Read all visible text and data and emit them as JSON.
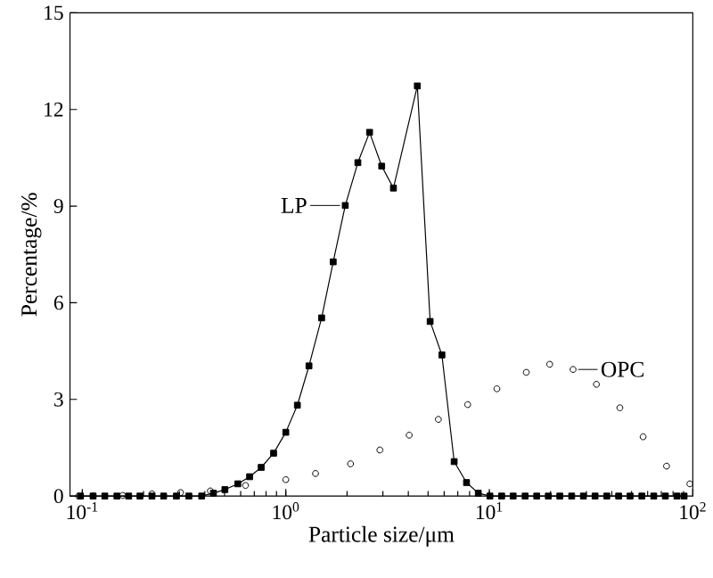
{
  "chart_data": {
    "type": "line",
    "xlabel": "Particle size/μm",
    "ylabel": "Percentage/%",
    "log": "x",
    "xlim": [
      0.087,
      100
    ],
    "ylim": [
      0,
      15
    ],
    "xticks": [
      {
        "value": 0.1,
        "label": "10$^{-1}$"
      },
      {
        "value": 1,
        "label": "10$^{0}$"
      },
      {
        "value": 10,
        "label": "10$^{1}$"
      },
      {
        "value": 100,
        "label": "10$^{2}$"
      }
    ],
    "yticks": [
      0,
      3,
      6,
      9,
      12,
      15
    ],
    "grid": false,
    "legend": "center",
    "series": [
      {
        "name": "LP",
        "marker": "square",
        "color": "#000000",
        "x": [
          0.098,
          0.113,
          0.129,
          0.148,
          0.169,
          0.192,
          0.22,
          0.251,
          0.29,
          0.334,
          0.386,
          0.441,
          0.502,
          0.581,
          0.664,
          0.757,
          0.871,
          1.0,
          1.14,
          1.3,
          1.5,
          1.71,
          1.96,
          2.26,
          2.58,
          2.96,
          3.38,
          4.43,
          5.12,
          5.85,
          6.72,
          7.73,
          8.83,
          10.07,
          11.5,
          13.1,
          15.0,
          17.1,
          19.5,
          22.2,
          25.4,
          29.0,
          33.1,
          37.8,
          43.2,
          49.2,
          56.2,
          64.3,
          73.3,
          83.6,
          90.6
        ],
        "values": [
          0,
          0,
          0,
          0,
          0,
          0,
          0,
          0,
          0,
          0,
          0,
          0.09,
          0.2,
          0.38,
          0.6,
          0.89,
          1.33,
          1.98,
          2.82,
          4.04,
          5.53,
          7.27,
          9.02,
          10.35,
          11.29,
          10.24,
          9.56,
          12.73,
          5.42,
          4.38,
          1.07,
          0.42,
          0.09,
          0,
          0,
          0,
          0,
          0,
          0,
          0,
          0,
          0,
          0,
          0,
          0,
          0,
          0,
          0,
          0,
          0,
          0
        ]
      },
      {
        "name": "OPC",
        "type": "scatter",
        "marker": "circle",
        "color": "#000000",
        "x": [
          0.096,
          0.113,
          0.158,
          0.22,
          0.304,
          0.426,
          0.634,
          1.0,
          1.4,
          2.08,
          2.9,
          4.04,
          5.62,
          7.83,
          10.9,
          15.2,
          19.8,
          25.8,
          33.6,
          43.8,
          57.0,
          74.3,
          96.7
        ],
        "values": [
          0,
          0,
          0.02,
          0.07,
          0.11,
          0.16,
          0.33,
          0.51,
          0.7,
          1.0,
          1.43,
          1.89,
          2.38,
          2.84,
          3.33,
          3.84,
          4.09,
          3.93,
          3.47,
          2.74,
          1.84,
          0.93,
          0.38
        ]
      }
    ]
  }
}
